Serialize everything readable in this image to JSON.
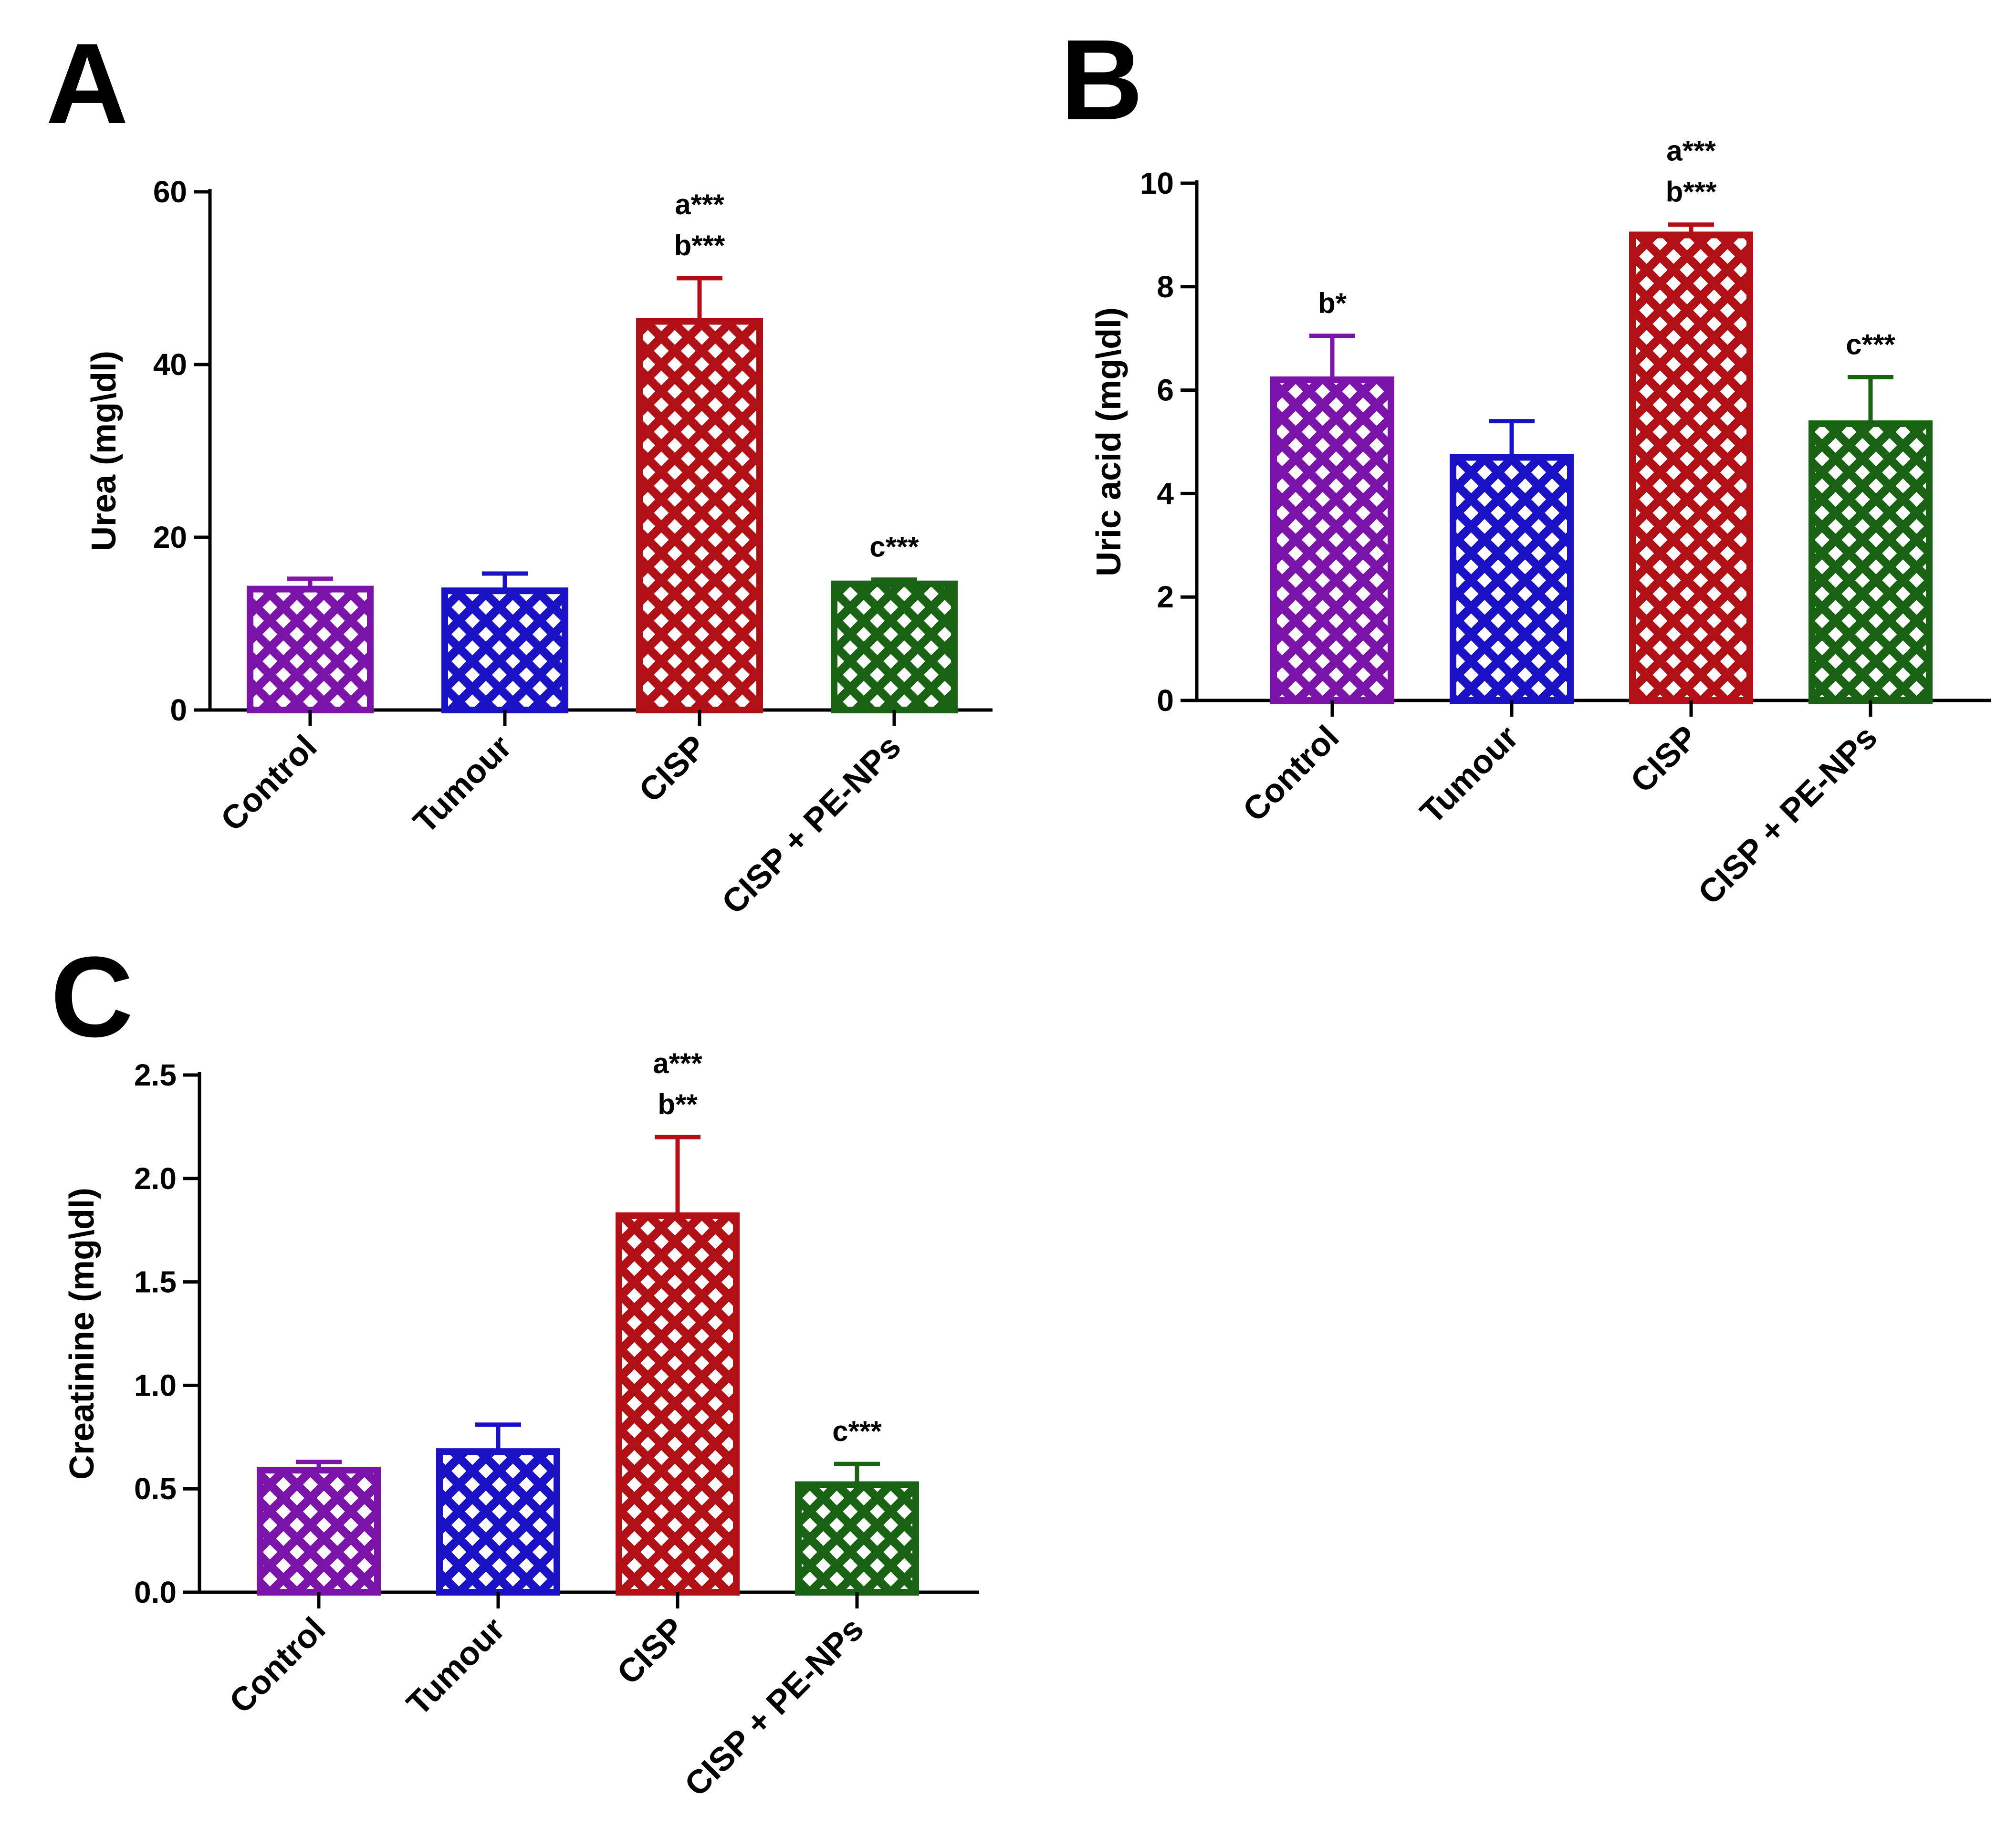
{
  "figure": {
    "panels": [
      "A",
      "B",
      "C"
    ]
  },
  "chart_data": [
    {
      "panel": "A",
      "type": "bar",
      "title": "",
      "xlabel": "",
      "ylabel": "Urea (mg\\dl)",
      "ylim": [
        0,
        60
      ],
      "yticks": [
        0,
        20,
        40,
        60
      ],
      "ytick_labels": [
        "0",
        "20",
        "40",
        "60"
      ],
      "categories": [
        "Control",
        "Tumour",
        "CISP",
        "CISP + PE-NPs"
      ],
      "values": [
        14,
        13.8,
        45,
        14.6
      ],
      "errors": [
        1.2,
        2.0,
        5.0,
        0.5
      ],
      "colors": [
        "#7b14a8",
        "#1a12c4",
        "#b01016",
        "#1a6314"
      ],
      "annotations": [
        [],
        [],
        [
          "a***",
          "b***"
        ],
        [
          "c***"
        ]
      ],
      "fill_pattern": "crosshatch"
    },
    {
      "panel": "B",
      "type": "bar",
      "title": "",
      "xlabel": "",
      "ylabel": "Uric acid (mg\\dl)",
      "ylim": [
        0,
        10
      ],
      "yticks": [
        0,
        2,
        4,
        6,
        8,
        10
      ],
      "ytick_labels": [
        "0",
        "2",
        "4",
        "6",
        "8",
        "10"
      ],
      "categories": [
        "Control",
        "Tumour",
        "CISP",
        "CISP + PE-NPs"
      ],
      "values": [
        6.2,
        4.7,
        9.0,
        5.35
      ],
      "errors": [
        0.85,
        0.7,
        0.2,
        0.9
      ],
      "colors": [
        "#7b14a8",
        "#1a12c4",
        "#b01016",
        "#1a6314"
      ],
      "annotations": [
        [
          "b*"
        ],
        [],
        [
          "a***",
          "b***"
        ],
        [
          "c***"
        ]
      ],
      "fill_pattern": "crosshatch"
    },
    {
      "panel": "C",
      "type": "bar",
      "title": "",
      "xlabel": "",
      "ylabel": "Creatinine (mg\\dl)",
      "ylim": [
        0,
        2.5
      ],
      "yticks": [
        0,
        0.5,
        1.0,
        1.5,
        2.0,
        2.5
      ],
      "ytick_labels": [
        "0.0",
        "0.5",
        "1.0",
        "1.5",
        "2.0",
        "2.5"
      ],
      "categories": [
        "Control",
        "Tumour",
        "CISP",
        "CISP + PE-NPs"
      ],
      "values": [
        0.59,
        0.68,
        1.82,
        0.52
      ],
      "errors": [
        0.04,
        0.13,
        0.38,
        0.1
      ],
      "colors": [
        "#7b14a8",
        "#1a12c4",
        "#b01016",
        "#1a6314"
      ],
      "annotations": [
        [],
        [],
        [
          "a***",
          "b**"
        ],
        [
          "c***"
        ]
      ],
      "fill_pattern": "crosshatch"
    }
  ]
}
